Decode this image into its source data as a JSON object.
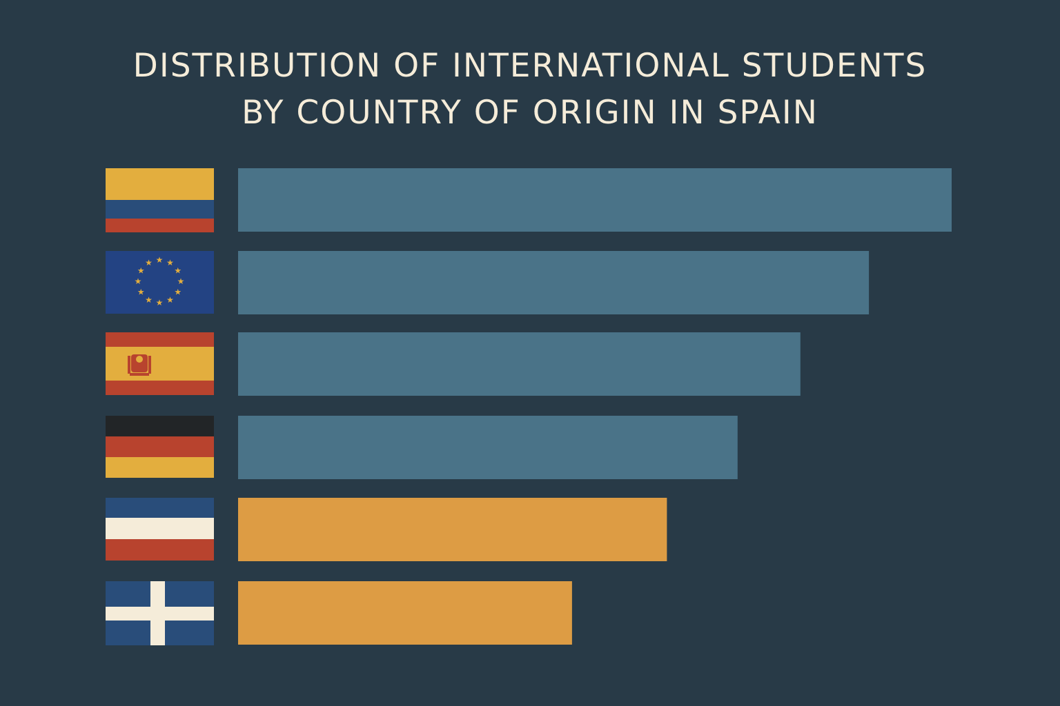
{
  "chart_data": {
    "type": "bar",
    "orientation": "horizontal",
    "title_lines": [
      "DISTRIBUTION OF INTERNATIONAL STUDENTS",
      "BY COUNTRY OF ORIGIN IN SPAIN"
    ],
    "categories": [
      "colombia-flag",
      "eu-flag",
      "spain-flag",
      "germany-flag",
      "tricolor-flag",
      "cross-flag"
    ],
    "values": [
      100,
      88.4,
      78.8,
      70,
      60.1,
      46.8
    ],
    "xlim": [
      0,
      100
    ],
    "grid": false,
    "legend": "none",
    "colors": {
      "background": "#283a47",
      "title": "#f5ecd9",
      "bars": [
        "#4a7388",
        "#4a7388",
        "#4a7388",
        "#4a7388",
        "#dd9c44",
        "#dd9c44"
      ]
    }
  }
}
